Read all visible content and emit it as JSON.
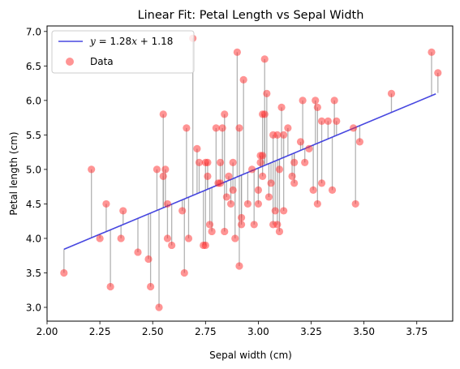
{
  "chart_data": {
    "type": "scatter",
    "title": "Linear Fit: Petal Length vs Sepal Width",
    "xlabel": "Sepal width (cm)",
    "ylabel": "Petal length (cm)",
    "xlim": [
      2.0,
      3.92
    ],
    "ylim": [
      2.8,
      7.08
    ],
    "xticks": [
      2.0,
      2.25,
      2.5,
      2.75,
      3.0,
      3.25,
      3.5,
      3.75
    ],
    "xtick_labels": [
      "2.00",
      "2.25",
      "2.50",
      "2.75",
      "3.00",
      "3.25",
      "3.50",
      "3.75"
    ],
    "yticks": [
      3.0,
      3.5,
      4.0,
      4.5,
      5.0,
      5.5,
      6.0,
      6.5,
      7.0
    ],
    "ytick_labels": [
      "3.0",
      "3.5",
      "4.0",
      "4.5",
      "5.0",
      "5.5",
      "6.0",
      "6.5",
      "7.0"
    ],
    "grid": false,
    "legend_position": "top-left",
    "legend": {
      "fit_label": "y = 1.28x + 1.18",
      "fit_label_parts": {
        "y": "y",
        "eq": " = 1.28",
        "x": "x",
        "rest": " + 1.18"
      },
      "data_label": "Data"
    },
    "fit": {
      "slope": 1.28,
      "intercept": 1.18,
      "x_range": [
        2.08,
        3.84
      ],
      "color": "#3333dd"
    },
    "points_color": "#ff2a2a",
    "residual_color": "#999999",
    "series": [
      {
        "name": "Data",
        "points": [
          [
            2.08,
            3.5
          ],
          [
            2.21,
            5.0
          ],
          [
            2.25,
            4.0
          ],
          [
            2.28,
            4.5
          ],
          [
            2.3,
            3.3
          ],
          [
            2.35,
            4.0
          ],
          [
            2.36,
            4.4
          ],
          [
            2.43,
            3.8
          ],
          [
            2.48,
            3.7
          ],
          [
            2.49,
            3.3
          ],
          [
            2.52,
            5.0
          ],
          [
            2.53,
            3.0
          ],
          [
            2.55,
            4.9
          ],
          [
            2.55,
            5.8
          ],
          [
            2.56,
            5.0
          ],
          [
            2.57,
            4.5
          ],
          [
            2.57,
            4.0
          ],
          [
            2.59,
            3.9
          ],
          [
            2.64,
            4.4
          ],
          [
            2.65,
            3.5
          ],
          [
            2.66,
            5.6
          ],
          [
            2.67,
            4.0
          ],
          [
            2.69,
            6.9
          ],
          [
            2.71,
            5.3
          ],
          [
            2.72,
            5.1
          ],
          [
            2.74,
            3.9
          ],
          [
            2.75,
            3.9
          ],
          [
            2.75,
            5.1
          ],
          [
            2.76,
            5.1
          ],
          [
            2.76,
            4.9
          ],
          [
            2.77,
            4.2
          ],
          [
            2.78,
            4.1
          ],
          [
            2.8,
            5.6
          ],
          [
            2.81,
            4.8
          ],
          [
            2.82,
            5.1
          ],
          [
            2.82,
            4.8
          ],
          [
            2.83,
            5.6
          ],
          [
            2.84,
            5.8
          ],
          [
            2.84,
            4.1
          ],
          [
            2.85,
            4.6
          ],
          [
            2.86,
            4.9
          ],
          [
            2.87,
            4.5
          ],
          [
            2.88,
            5.1
          ],
          [
            2.88,
            4.7
          ],
          [
            2.89,
            4.0
          ],
          [
            2.9,
            6.7
          ],
          [
            2.91,
            5.6
          ],
          [
            2.91,
            3.6
          ],
          [
            2.92,
            4.3
          ],
          [
            2.92,
            4.2
          ],
          [
            2.93,
            6.3
          ],
          [
            2.95,
            4.5
          ],
          [
            2.97,
            5.0
          ],
          [
            2.98,
            4.2
          ],
          [
            3.0,
            4.5
          ],
          [
            3.0,
            4.7
          ],
          [
            3.01,
            5.1
          ],
          [
            3.01,
            5.2
          ],
          [
            3.02,
            5.8
          ],
          [
            3.02,
            4.9
          ],
          [
            3.02,
            5.2
          ],
          [
            3.03,
            6.6
          ],
          [
            3.03,
            5.8
          ],
          [
            3.04,
            6.1
          ],
          [
            3.05,
            4.6
          ],
          [
            3.06,
            4.8
          ],
          [
            3.07,
            4.2
          ],
          [
            3.07,
            5.5
          ],
          [
            3.08,
            4.4
          ],
          [
            3.09,
            4.2
          ],
          [
            3.09,
            5.5
          ],
          [
            3.1,
            5.0
          ],
          [
            3.1,
            4.1
          ],
          [
            3.11,
            5.9
          ],
          [
            3.12,
            5.5
          ],
          [
            3.12,
            4.4
          ],
          [
            3.14,
            5.6
          ],
          [
            3.16,
            4.9
          ],
          [
            3.17,
            4.8
          ],
          [
            3.17,
            5.1
          ],
          [
            3.2,
            5.4
          ],
          [
            3.21,
            6.0
          ],
          [
            3.22,
            5.1
          ],
          [
            3.24,
            5.3
          ],
          [
            3.26,
            4.7
          ],
          [
            3.27,
            6.0
          ],
          [
            3.28,
            5.9
          ],
          [
            3.28,
            4.5
          ],
          [
            3.3,
            5.7
          ],
          [
            3.3,
            4.8
          ],
          [
            3.33,
            5.7
          ],
          [
            3.35,
            4.7
          ],
          [
            3.36,
            6.0
          ],
          [
            3.37,
            5.7
          ],
          [
            3.45,
            5.6
          ],
          [
            3.46,
            4.5
          ],
          [
            3.48,
            5.4
          ],
          [
            3.63,
            6.1
          ],
          [
            3.82,
            6.7
          ],
          [
            3.85,
            6.4
          ]
        ]
      }
    ]
  }
}
